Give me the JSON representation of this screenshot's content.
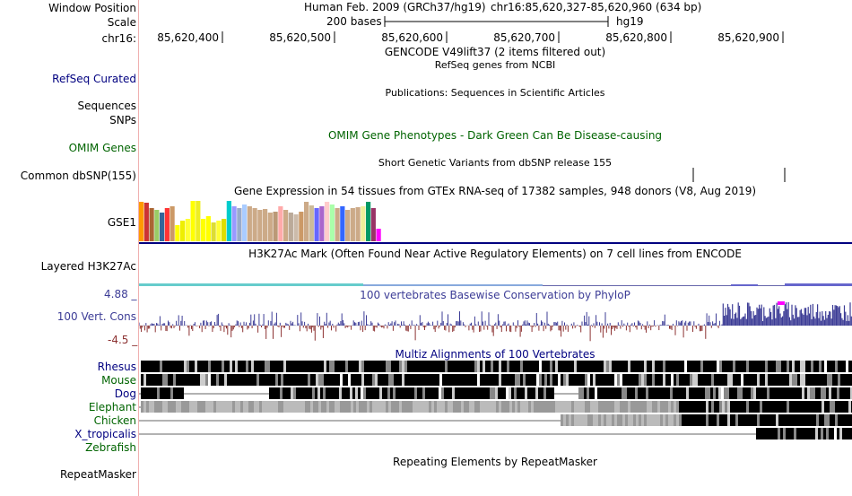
{
  "position": {
    "window_label": "Window Position",
    "scale_label": "Scale",
    "chrom_label": "chr16:",
    "assembly": "Human Feb. 2009 (GRCh37/hg19)",
    "range": "chr16:85,620,327-85,620,960 (634 bp)",
    "scale_text": "200 bases",
    "scale_db": "hg19",
    "ticks": [
      "85,620,400",
      "85,620,500",
      "85,620,600",
      "85,620,700",
      "85,620,800",
      "85,620,900"
    ]
  },
  "tracks": {
    "gencode": {
      "title": "GENCODE V49lift37 (2 items filtered out)"
    },
    "refseq": {
      "label": "RefSeq Curated",
      "title": "RefSeq genes from NCBI"
    },
    "publications": {
      "label_a": "Sequences",
      "title": "Publications: Sequences in Scientific Articles"
    },
    "snps": {
      "label": "SNPs"
    },
    "omim": {
      "label": "OMIM Genes",
      "title": "OMIM Gene Phenotypes - Dark Green Can Be Disease-causing"
    },
    "dbsnp": {
      "label": "Common dbSNP(155)",
      "title": "Short Genetic Variants from dbSNP release 155"
    },
    "gtex": {
      "label": "GSE1",
      "title": "Gene Expression in 54 tissues from GTEx RNA-seq of 17382 samples, 948 donors (V8, Aug 2019)"
    },
    "h3k27ac": {
      "label": "Layered H3K27Ac",
      "title": "H3K27Ac Mark (Often Found Near Active Regulatory Elements) on 7 cell lines from ENCODE"
    },
    "cons": {
      "label": "100 Vert. Cons",
      "title": "100 vertebrates Basewise Conservation by PhyloP",
      "ymax": "4.88 _",
      "ymin": "-4.5 _"
    },
    "multiz": {
      "title": "Multiz Alignments of 100 Vertebrates",
      "species": [
        "Rhesus",
        "Mouse",
        "Dog",
        "Elephant",
        "Chicken",
        "X_tropicalis",
        "Zebrafish"
      ]
    },
    "rmsk": {
      "label": "RepeatMasker",
      "title": "Repeating Elements by RepeatMasker"
    }
  },
  "colors": {
    "navy": "#000080",
    "green": "#006400",
    "cons_pos": "#3c3c96",
    "cons_neg": "#8c3232"
  },
  "gtex_values": [
    0.95,
    0.93,
    0.8,
    0.75,
    0.7,
    0.8,
    0.85,
    0.4,
    0.5,
    0.55,
    0.98,
    0.97,
    0.55,
    0.6,
    0.45,
    0.5,
    0.55,
    0.98,
    0.85,
    0.8,
    0.9,
    0.85,
    0.8,
    0.75,
    0.78,
    0.7,
    0.72,
    0.85,
    0.75,
    0.7,
    0.65,
    0.72,
    0.95,
    0.88,
    0.8,
    0.85,
    0.95,
    0.9,
    0.8,
    0.85,
    0.75,
    0.8,
    0.82,
    0.85,
    0.95,
    0.8,
    0.3
  ],
  "gtex_colors": [
    "#ff9900",
    "#cc3333",
    "#aa6633",
    "#99cc66",
    "#336699",
    "#ff3333",
    "#cc9966",
    "#ffff00",
    "#eeee00",
    "#ffff33",
    "#ffff00",
    "#eeee22",
    "#ffff00",
    "#ffff00",
    "#dddd33",
    "#ffff33",
    "#dddd00",
    "#00cccc",
    "#9999ff",
    "#99aacc",
    "#aaccff",
    "#ccaa88",
    "#ccaa88",
    "#ccaa88",
    "#ccaa88",
    "#ccaa88",
    "#bb9977",
    "#ffaaaa",
    "#ccaa88",
    "#bbaa99",
    "#ccbbaa",
    "#cc9966",
    "#ccaa88",
    "#ccbb99",
    "#6666ff",
    "#aa66cc",
    "#ffcccc",
    "#aaffaa",
    "#ccaa88",
    "#3366ff",
    "#ccaa88",
    "#ccaa88",
    "#ccaa88",
    "#eeee99",
    "#009966",
    "#993366",
    "#ff00ff"
  ]
}
